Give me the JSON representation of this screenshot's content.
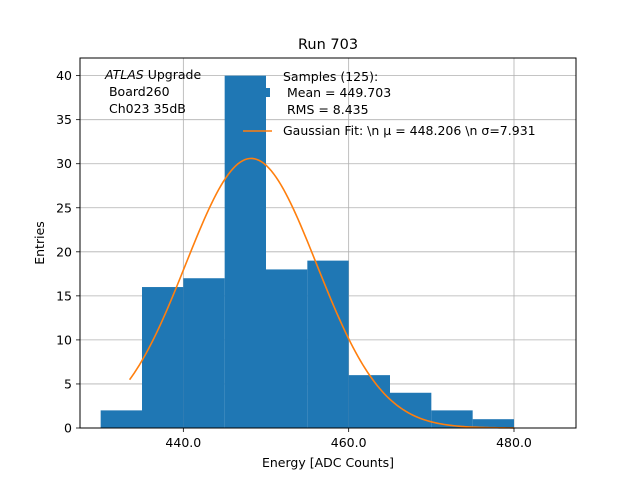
{
  "chart_data": {
    "type": "bar",
    "title": "Run 703",
    "xlabel": "Energy [ADC Counts]",
    "ylabel": "Entries",
    "xlim": [
      427.5,
      487.5
    ],
    "ylim": [
      0,
      42
    ],
    "grid": true,
    "x_ticks": [
      440,
      460,
      480
    ],
    "x_tick_labels": [
      "440.0",
      "460.0",
      "480.0"
    ],
    "y_ticks": [
      0,
      5,
      10,
      15,
      20,
      25,
      30,
      35,
      40
    ],
    "y_tick_labels": [
      "0",
      "5",
      "10",
      "15",
      "20",
      "25",
      "30",
      "35",
      "40"
    ],
    "bins": [
      {
        "x0": 430,
        "x1": 435,
        "value": 2
      },
      {
        "x0": 435,
        "x1": 440,
        "value": 16
      },
      {
        "x0": 440,
        "x1": 445,
        "value": 17
      },
      {
        "x0": 445,
        "x1": 450,
        "value": 40
      },
      {
        "x0": 450,
        "x1": 455,
        "value": 18
      },
      {
        "x0": 455,
        "x1": 460,
        "value": 19
      },
      {
        "x0": 460,
        "x1": 465,
        "value": 6
      },
      {
        "x0": 465,
        "x1": 470,
        "value": 4
      },
      {
        "x0": 470,
        "x1": 475,
        "value": 2
      },
      {
        "x0": 475,
        "x1": 480,
        "value": 1
      }
    ],
    "fit": {
      "type": "gaussian",
      "amplitude": 30.6,
      "mu": 448.206,
      "sigma": 7.931,
      "x_range": [
        433.5,
        480.0
      ]
    },
    "annotation_lines": [
      "ATLAS Upgrade",
      " Board260",
      " Ch023 35dB"
    ],
    "annotation_italic_word": "ATLAS",
    "annotation_rest": " Upgrade",
    "legend": {
      "position": "top-right",
      "hist_label_lines": [
        "Samples (125):",
        " Mean = 449.703",
        " RMS = 8.435"
      ],
      "fit_label": "Gaussian Fit: \\n μ = 448.206 \\n σ=7.931"
    },
    "colors": {
      "hist": "#1f77b4",
      "fit": "#ff7f0e",
      "grid": "#b0b0b0"
    }
  }
}
